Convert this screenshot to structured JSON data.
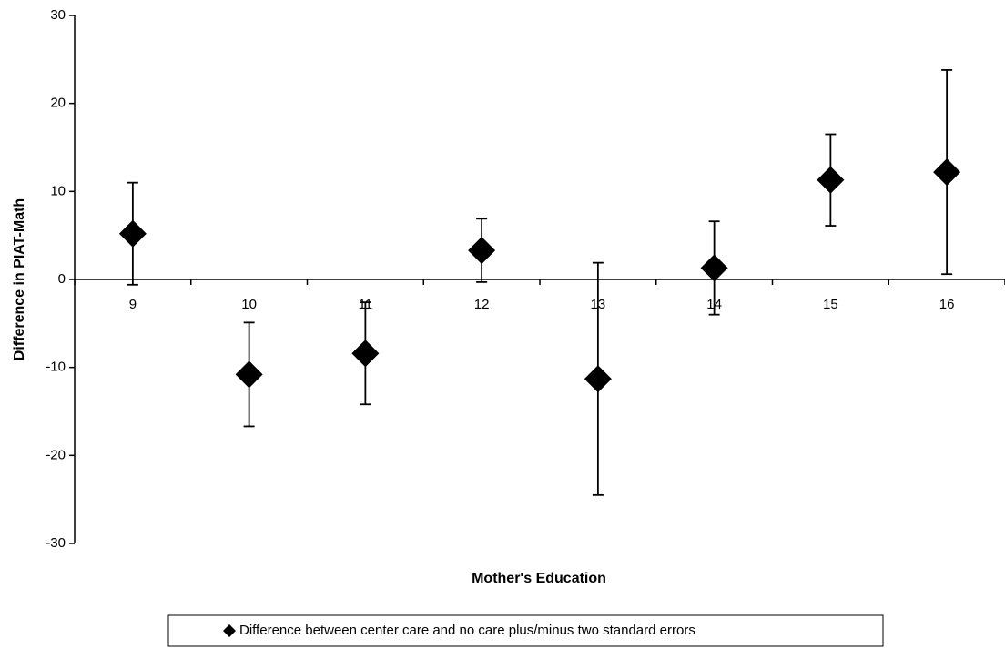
{
  "chart_data": {
    "type": "scatter",
    "x_label": "Mother's Education",
    "y_label": "Difference in PIAT-Math",
    "categories": [
      "9",
      "10",
      "11",
      "12",
      "13",
      "14",
      "15",
      "16"
    ],
    "series": [
      {
        "name": "Difference between center care and no care plus/minus two standard errors",
        "color": "#000000",
        "values": [
          5.2,
          -10.8,
          -8.4,
          3.3,
          -11.3,
          1.3,
          11.3,
          12.2
        ],
        "errors": [
          5.8,
          5.9,
          5.8,
          3.6,
          13.2,
          5.3,
          5.2,
          11.6
        ]
      }
    ],
    "ylim": [
      -30,
      30
    ],
    "yticks": [
      -30,
      -20,
      -10,
      0,
      10,
      20,
      30
    ],
    "grid": false,
    "legend": "bottom"
  }
}
